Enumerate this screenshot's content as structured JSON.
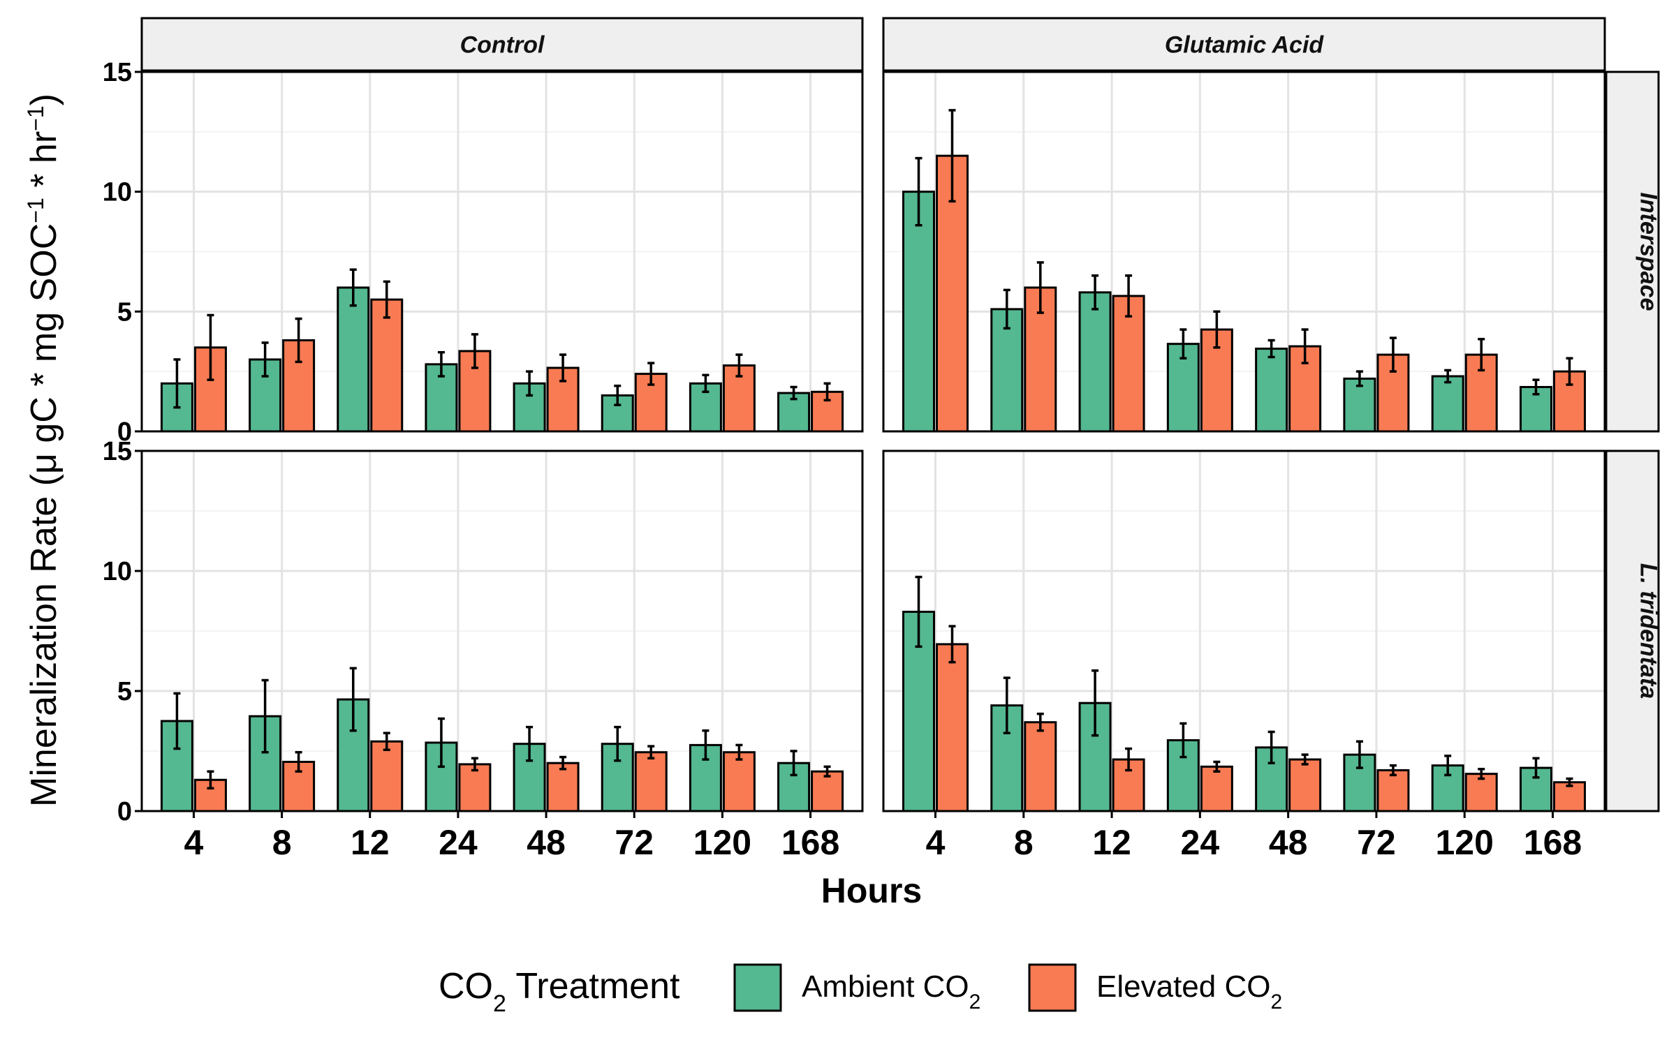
{
  "chart_data": {
    "type": "bar",
    "ylabel": "Mineralization Rate (μ gC * mg SOC",
    "ylabel_sup1": "−1",
    "ylabel_mid": " * hr",
    "ylabel_sup2": "−1",
    "ylabel_end": ")",
    "xlabel": "Hours",
    "categories": [
      "4",
      "8",
      "12",
      "24",
      "48",
      "72",
      "120",
      "168"
    ],
    "ylim": [
      0,
      15
    ],
    "yticks": [
      0,
      5,
      10,
      15
    ],
    "columns": [
      "Control",
      "Glutamic Acid"
    ],
    "rows": [
      "Interspace",
      "L. tridentata"
    ],
    "colors": {
      "Ambient": "#54b890",
      "Elevated": "#f97b53"
    },
    "legend": {
      "title_pre": "CO",
      "title_sub": "2",
      "title_post": " Treatment",
      "items": [
        {
          "key": "Ambient",
          "label": "Ambient CO",
          "sub": "2"
        },
        {
          "key": "Elevated",
          "label": "Elevated CO",
          "sub": "2"
        }
      ],
      "position": "bottom"
    },
    "panels": [
      {
        "column": "Control",
        "row": "Interspace",
        "series": [
          {
            "name": "Ambient CO2",
            "values": [
              2.0,
              3.0,
              6.0,
              2.8,
              2.0,
              1.5,
              2.0,
              1.6
            ],
            "err": [
              1.0,
              0.7,
              0.75,
              0.5,
              0.5,
              0.4,
              0.35,
              0.25
            ]
          },
          {
            "name": "Elevated CO2",
            "values": [
              3.5,
              3.8,
              5.5,
              3.35,
              2.65,
              2.4,
              2.75,
              1.65
            ],
            "err": [
              1.35,
              0.9,
              0.75,
              0.7,
              0.55,
              0.45,
              0.45,
              0.35
            ]
          }
        ]
      },
      {
        "column": "Glutamic Acid",
        "row": "Interspace",
        "series": [
          {
            "name": "Ambient CO2",
            "values": [
              10.0,
              5.1,
              5.8,
              3.65,
              3.45,
              2.2,
              2.3,
              1.85
            ],
            "err": [
              1.4,
              0.8,
              0.7,
              0.6,
              0.35,
              0.3,
              0.25,
              0.3
            ]
          },
          {
            "name": "Elevated CO2",
            "values": [
              11.5,
              6.0,
              5.65,
              4.25,
              3.55,
              3.2,
              3.2,
              2.5
            ],
            "err": [
              1.9,
              1.05,
              0.85,
              0.75,
              0.7,
              0.7,
              0.65,
              0.55
            ]
          }
        ]
      },
      {
        "column": "Control",
        "row": "L. tridentata",
        "series": [
          {
            "name": "Ambient CO2",
            "values": [
              3.75,
              3.95,
              4.65,
              2.85,
              2.8,
              2.8,
              2.75,
              2.0
            ],
            "err": [
              1.15,
              1.5,
              1.3,
              1.0,
              0.7,
              0.7,
              0.6,
              0.5
            ]
          },
          {
            "name": "Elevated CO2",
            "values": [
              1.3,
              2.05,
              2.9,
              1.95,
              2.0,
              2.45,
              2.45,
              1.65
            ],
            "err": [
              0.35,
              0.4,
              0.35,
              0.25,
              0.25,
              0.25,
              0.3,
              0.2
            ]
          }
        ]
      },
      {
        "column": "Glutamic Acid",
        "row": "L. tridentata",
        "series": [
          {
            "name": "Ambient CO2",
            "values": [
              8.3,
              4.4,
              4.5,
              2.95,
              2.65,
              2.35,
              1.9,
              1.8
            ],
            "err": [
              1.45,
              1.15,
              1.35,
              0.7,
              0.65,
              0.55,
              0.4,
              0.4
            ]
          },
          {
            "name": "Elevated CO2",
            "values": [
              6.95,
              3.7,
              2.15,
              1.85,
              2.15,
              1.7,
              1.55,
              1.2
            ],
            "err": [
              0.75,
              0.35,
              0.45,
              0.2,
              0.2,
              0.2,
              0.2,
              0.15
            ]
          }
        ]
      }
    ]
  }
}
